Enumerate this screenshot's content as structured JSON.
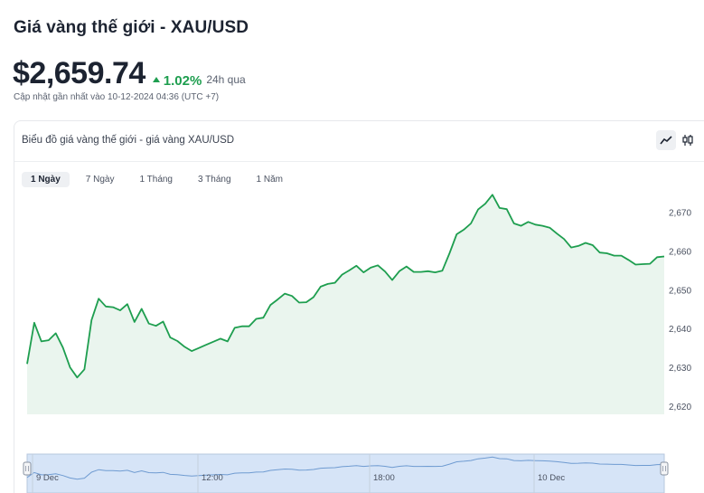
{
  "header": {
    "title": "Giá vàng thế giới - XAU/USD",
    "price": "$2,659.74",
    "change": "1.02%",
    "change_period": "24h qua",
    "updated": "Cập nhật gần nhất vào 10-12-2024 04:36 (UTC +7)"
  },
  "card": {
    "title": "Biểu đồ giá vàng thế giới - giá vàng XAU/USD",
    "view_buttons": [
      {
        "icon": "line-chart-icon",
        "active": true
      },
      {
        "icon": "candlestick-icon",
        "active": false
      }
    ],
    "range_tabs": [
      {
        "label": "1 Ngày",
        "active": true
      },
      {
        "label": "7 Ngày",
        "active": false
      },
      {
        "label": "1 Tháng",
        "active": false
      },
      {
        "label": "3 Tháng",
        "active": false
      },
      {
        "label": "1 Năm",
        "active": false
      }
    ],
    "navigator_labels": [
      "9 Dec",
      "12:00",
      "18:00",
      "10 Dec"
    ]
  },
  "colors": {
    "line": "#1e9e4f",
    "area": "#eaf5ee",
    "accent_up": "#1e9e4f",
    "navigator_fill": "#d6e4f7",
    "navigator_line": "#6f9bd1"
  },
  "chart_data": {
    "type": "area",
    "series": [
      {
        "values": [
          2631,
          2641.6,
          2636.8,
          2637.1,
          2638.9,
          2635.2,
          2630.1,
          2627.5,
          2629.6,
          2642.3,
          2647.8,
          2645.8,
          2645.6,
          2644.8,
          2646.4,
          2641.8,
          2645.2,
          2641.4,
          2640.8,
          2641.9,
          2637.8,
          2636.9,
          2635.4,
          2634.3,
          2635.1,
          2635.9,
          2636.7,
          2637.5,
          2636.8,
          2640.3,
          2640.7,
          2640.7,
          2642.6,
          2642.9,
          2646.2,
          2647.6,
          2649.1,
          2648.5,
          2646.8,
          2646.9,
          2648.2,
          2650.9,
          2651.6,
          2651.9,
          2654,
          2655.1,
          2656.3,
          2654.6,
          2655.8,
          2656.4,
          2654.8,
          2652.6,
          2654.9,
          2656.1,
          2654.7,
          2654.7,
          2654.9,
          2654.6,
          2655,
          2659.5,
          2664.4,
          2665.6,
          2667.2,
          2670.8,
          2672.3,
          2674.6,
          2671.2,
          2670.9,
          2667.2,
          2666.6,
          2667.6,
          2666.9,
          2666.6,
          2666.1,
          2664.6,
          2663.2,
          2661,
          2661.4,
          2662.2,
          2661.6,
          2659.7,
          2659.5,
          2658.9,
          2658.9,
          2657.8,
          2656.6,
          2656.7,
          2656.8,
          2658.5,
          2658.7
        ]
      }
    ],
    "ylim": [
      2618,
      2677
    ],
    "y_ticks": [
      2620,
      2630,
      2640,
      2650,
      2660,
      2670
    ],
    "y_tick_labels": [
      "2,620",
      "2,630",
      "2,640",
      "2,650",
      "2,660",
      "2,670"
    ],
    "x_ticks": [
      "9 Dec",
      "12:00",
      "18:00",
      "10 Dec"
    ],
    "grid": false,
    "legend": "none"
  }
}
